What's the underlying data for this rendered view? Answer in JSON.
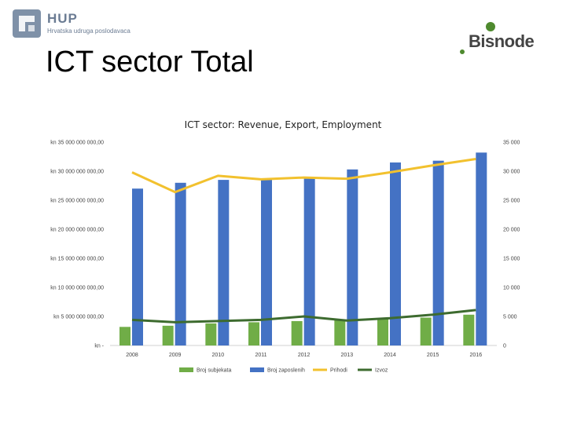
{
  "header": {
    "org_name": "HUP",
    "org_subtitle": "Hrvatska udruga poslodavaca",
    "partner_name": "Bisnode",
    "slide_title": "ICT sector Total"
  },
  "colors": {
    "subjects": "#70ad47",
    "employees": "#4472c4",
    "revenue": "#f2c12e",
    "export": "#3d6b2f"
  },
  "chart_data": {
    "type": "bar",
    "title": "ICT sector: Revenue, Export, Employment",
    "categories": [
      "2008",
      "2009",
      "2010",
      "2011",
      "2012",
      "2013",
      "2014",
      "2015",
      "2016"
    ],
    "left_axis": {
      "range": [
        0,
        35000000000
      ],
      "ticks": [
        "kn 35 000 000 000,00",
        "kn 30 000 000 000,00",
        "kn 25 000 000 000,00",
        "kn 20 000 000 000,00",
        "kn 15 000 000 000,00",
        "kn 10 000 000 000,00",
        "kn 5 000 000 000,00",
        "kn -"
      ]
    },
    "right_axis": {
      "range": [
        0,
        35000
      ],
      "ticks": [
        "35 000",
        "30 000",
        "25 000",
        "20 000",
        "15 000",
        "10 000",
        "5 000",
        "0"
      ]
    },
    "series": [
      {
        "name": "Broj subjekata",
        "kind": "bar",
        "axis": "right",
        "values": [
          3200,
          3400,
          3800,
          4000,
          4200,
          4400,
          4700,
          4800,
          5300
        ]
      },
      {
        "name": "Broj zaposlenih",
        "kind": "bar",
        "axis": "right",
        "values": [
          27000,
          28000,
          28500,
          28700,
          29000,
          30300,
          31500,
          31800,
          33200
        ]
      },
      {
        "name": "Prihodi",
        "kind": "line",
        "axis": "left",
        "values": [
          29800000000,
          26400000000,
          29200000000,
          28600000000,
          28900000000,
          28700000000,
          29800000000,
          31000000000,
          32100000000
        ]
      },
      {
        "name": "Izvoz",
        "kind": "line",
        "axis": "left",
        "values": [
          4400000000,
          4000000000,
          4200000000,
          4400000000,
          5000000000,
          4300000000,
          4700000000,
          5300000000,
          6100000000
        ]
      }
    ],
    "legend_position": "bottom"
  }
}
